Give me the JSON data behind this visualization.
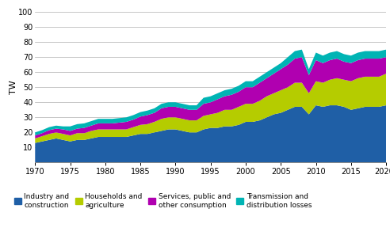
{
  "years": [
    1970,
    1971,
    1972,
    1973,
    1974,
    1975,
    1976,
    1977,
    1978,
    1979,
    1980,
    1981,
    1982,
    1983,
    1984,
    1985,
    1986,
    1987,
    1988,
    1989,
    1990,
    1991,
    1992,
    1993,
    1994,
    1995,
    1996,
    1997,
    1998,
    1999,
    2000,
    2001,
    2002,
    2003,
    2004,
    2005,
    2006,
    2007,
    2008,
    2009,
    2010,
    2011,
    2012,
    2013,
    2014,
    2015,
    2016,
    2017,
    2018,
    2019,
    2020
  ],
  "industry": [
    13,
    14,
    15,
    16,
    15,
    14,
    15,
    15,
    16,
    17,
    17,
    17,
    17,
    17,
    18,
    19,
    19,
    20,
    21,
    22,
    22,
    21,
    20,
    20,
    22,
    23,
    23,
    24,
    24,
    25,
    27,
    27,
    28,
    30,
    32,
    33,
    35,
    37,
    37,
    32,
    38,
    37,
    38,
    38,
    37,
    35,
    36,
    37,
    37,
    37,
    38
  ],
  "households": [
    3,
    3.5,
    4,
    4,
    4,
    4,
    4.5,
    4.5,
    5,
    5,
    5,
    5,
    5,
    5,
    5.5,
    6,
    6.5,
    7,
    8,
    8,
    8,
    8,
    8,
    8,
    9,
    9,
    10,
    11,
    11,
    12,
    12,
    12,
    13,
    14,
    14,
    15,
    15,
    16,
    16,
    14,
    16,
    16,
    17,
    18,
    18,
    19,
    20,
    20,
    20,
    20,
    21
  ],
  "services": [
    2,
    2,
    2.5,
    2.5,
    3,
    3,
    3,
    3.5,
    3.5,
    4,
    4,
    4,
    4.5,
    5,
    5,
    5.5,
    6,
    6,
    7,
    7,
    7,
    7,
    7,
    7,
    8,
    8,
    9,
    9,
    10,
    10,
    11,
    11,
    12,
    12,
    13,
    14,
    15,
    16,
    17,
    12,
    14,
    13,
    13,
    13,
    12,
    12,
    12,
    12,
    12,
    12,
    11
  ],
  "transmission": [
    2,
    2,
    2,
    2,
    2,
    3,
    3,
    3,
    3,
    3,
    3,
    3,
    3,
    3,
    3,
    3,
    3,
    3,
    3,
    3,
    3,
    3,
    3,
    3,
    4,
    4,
    4,
    4,
    4,
    4,
    4,
    4,
    4,
    4,
    4,
    4,
    5,
    5,
    5,
    4,
    5,
    5,
    5,
    5,
    5,
    5,
    5,
    5,
    5,
    5,
    5
  ],
  "colors": [
    "#1f5fa6",
    "#b5cc00",
    "#b000b0",
    "#00b4b4"
  ],
  "ylabel": "TW",
  "ylim": [
    0,
    100
  ],
  "yticks": [
    0,
    10,
    20,
    30,
    40,
    50,
    60,
    70,
    80,
    90,
    100
  ],
  "xticks": [
    1970,
    1975,
    1980,
    1985,
    1990,
    1995,
    2000,
    2005,
    2010,
    2015,
    2020
  ],
  "xlim": [
    1970,
    2020
  ],
  "legend_labels": [
    "Industry and\nconstruction",
    "Households and\nagriculture",
    "Services, public and\nother consumption",
    "Transmission and\ndistribution losses"
  ]
}
